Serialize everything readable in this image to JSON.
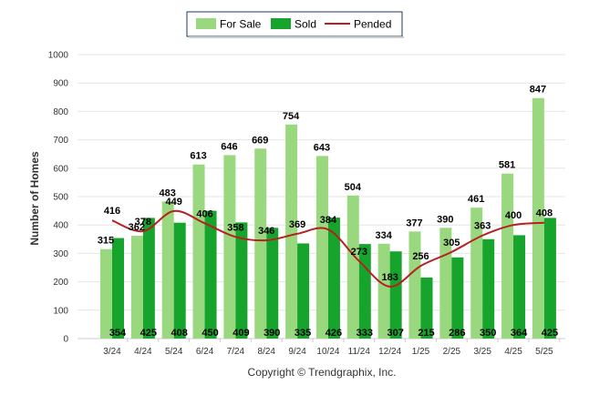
{
  "chart_data": {
    "type": "bar",
    "ylabel": "Number of Homes",
    "ylim": [
      0,
      1000
    ],
    "yticks": [
      0,
      100,
      200,
      300,
      400,
      500,
      600,
      700,
      800,
      900,
      1000
    ],
    "grid": true,
    "legend_position": "top-center",
    "categories": [
      "3/24",
      "4/24",
      "5/24",
      "6/24",
      "7/24",
      "8/24",
      "9/24",
      "10/24",
      "11/24",
      "12/24",
      "1/25",
      "2/25",
      "3/25",
      "4/25",
      "5/25"
    ],
    "series": [
      {
        "name": "For Sale",
        "kind": "bar",
        "color": "#9ad87f",
        "values": [
          315,
          362,
          483,
          613,
          646,
          669,
          754,
          643,
          504,
          334,
          377,
          390,
          461,
          581,
          847
        ]
      },
      {
        "name": "Sold",
        "kind": "bar",
        "color": "#17a42d",
        "values": [
          354,
          425,
          408,
          450,
          409,
          390,
          335,
          426,
          333,
          307,
          215,
          286,
          350,
          364,
          425
        ]
      },
      {
        "name": "Pended",
        "kind": "line",
        "color": "#b81f1f",
        "values": [
          416,
          378,
          449,
          406,
          358,
          346,
          369,
          384,
          273,
          183,
          256,
          305,
          363,
          400,
          408
        ]
      }
    ]
  },
  "footer": {
    "copyright": "Copyright © Trendgraphix, Inc."
  }
}
